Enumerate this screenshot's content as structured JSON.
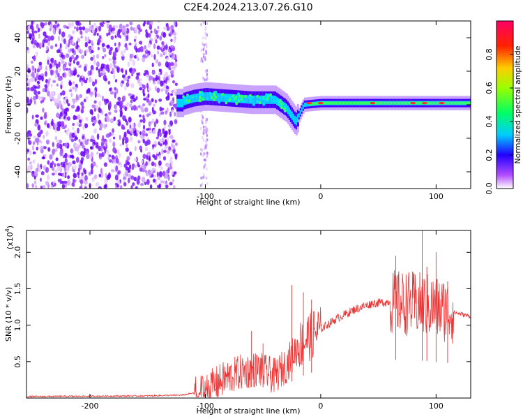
{
  "chart_data": [
    {
      "type": "heatmap",
      "title": "C2E4.2024.213.07.26.G10",
      "xlabel": "Height of straight line (km)",
      "ylabel": "Frequency (Hz)",
      "xlim": [
        -255,
        130
      ],
      "ylim": [
        -50,
        50
      ],
      "xticks": [
        -200,
        -100,
        0,
        100
      ],
      "yticks": [
        -40,
        -20,
        0,
        20,
        40
      ],
      "colorbar": {
        "label": "Normalized spectral amplitude",
        "range": [
          0,
          1
        ],
        "ticks": [
          "0.0",
          "0.2",
          "0.4",
          "0.6",
          "0.8"
        ]
      },
      "ridge": [
        {
          "x": -120,
          "y": 2
        },
        {
          "x": -110,
          "y": 4
        },
        {
          "x": -100,
          "y": 5
        },
        {
          "x": -80,
          "y": 4
        },
        {
          "x": -60,
          "y": 3
        },
        {
          "x": -40,
          "y": 3
        },
        {
          "x": -30,
          "y": -2
        },
        {
          "x": -22,
          "y": -10
        },
        {
          "x": -15,
          "y": 0
        },
        {
          "x": 0,
          "y": 1
        },
        {
          "x": 20,
          "y": 1
        },
        {
          "x": 60,
          "y": 1
        },
        {
          "x": 100,
          "y": 1
        },
        {
          "x": 130,
          "y": 1
        }
      ]
    },
    {
      "type": "line",
      "xlabel": "Height of straight line (km)",
      "ylabel": "SNR (10 * v/v)",
      "multiplier": "(x10",
      "multiplier_exp": "4",
      "multiplier_close": ")",
      "xlim": [
        -255,
        130
      ],
      "ylim": [
        0,
        2.3
      ],
      "xticks": [
        -200,
        -100,
        0,
        100
      ],
      "yticks": [
        "0.5",
        "1.0",
        "1.5",
        "2.0"
      ],
      "color": "#ee3333",
      "envelope": [
        {
          "x": -255,
          "y": 0.02
        },
        {
          "x": -150,
          "y": 0.03
        },
        {
          "x": -120,
          "y": 0.04
        },
        {
          "x": -100,
          "y": 0.1
        },
        {
          "x": -85,
          "y": 0.25
        },
        {
          "x": -70,
          "y": 0.35
        },
        {
          "x": -55,
          "y": 0.4
        },
        {
          "x": -40,
          "y": 0.3
        },
        {
          "x": -30,
          "y": 0.45
        },
        {
          "x": -20,
          "y": 0.7
        },
        {
          "x": -10,
          "y": 0.85
        },
        {
          "x": 0,
          "y": 0.95
        },
        {
          "x": 15,
          "y": 1.1
        },
        {
          "x": 30,
          "y": 1.22
        },
        {
          "x": 45,
          "y": 1.3
        },
        {
          "x": 60,
          "y": 1.32
        },
        {
          "x": 75,
          "y": 1.3
        },
        {
          "x": 90,
          "y": 1.28
        },
        {
          "x": 110,
          "y": 1.2
        },
        {
          "x": 130,
          "y": 1.12
        }
      ],
      "spikes": [
        {
          "x": -60,
          "y": 0.92
        },
        {
          "x": -50,
          "y": 0.75
        },
        {
          "x": -25,
          "y": 1.55
        },
        {
          "x": -15,
          "y": 1.45
        },
        {
          "x": -8,
          "y": 1.35
        },
        {
          "x": 65,
          "y": 1.95
        },
        {
          "x": 88,
          "y": 2.3
        },
        {
          "x": 92,
          "y": 1.8
        },
        {
          "x": 100,
          "y": 2.0
        },
        {
          "x": 110,
          "y": 1.6
        }
      ]
    }
  ]
}
